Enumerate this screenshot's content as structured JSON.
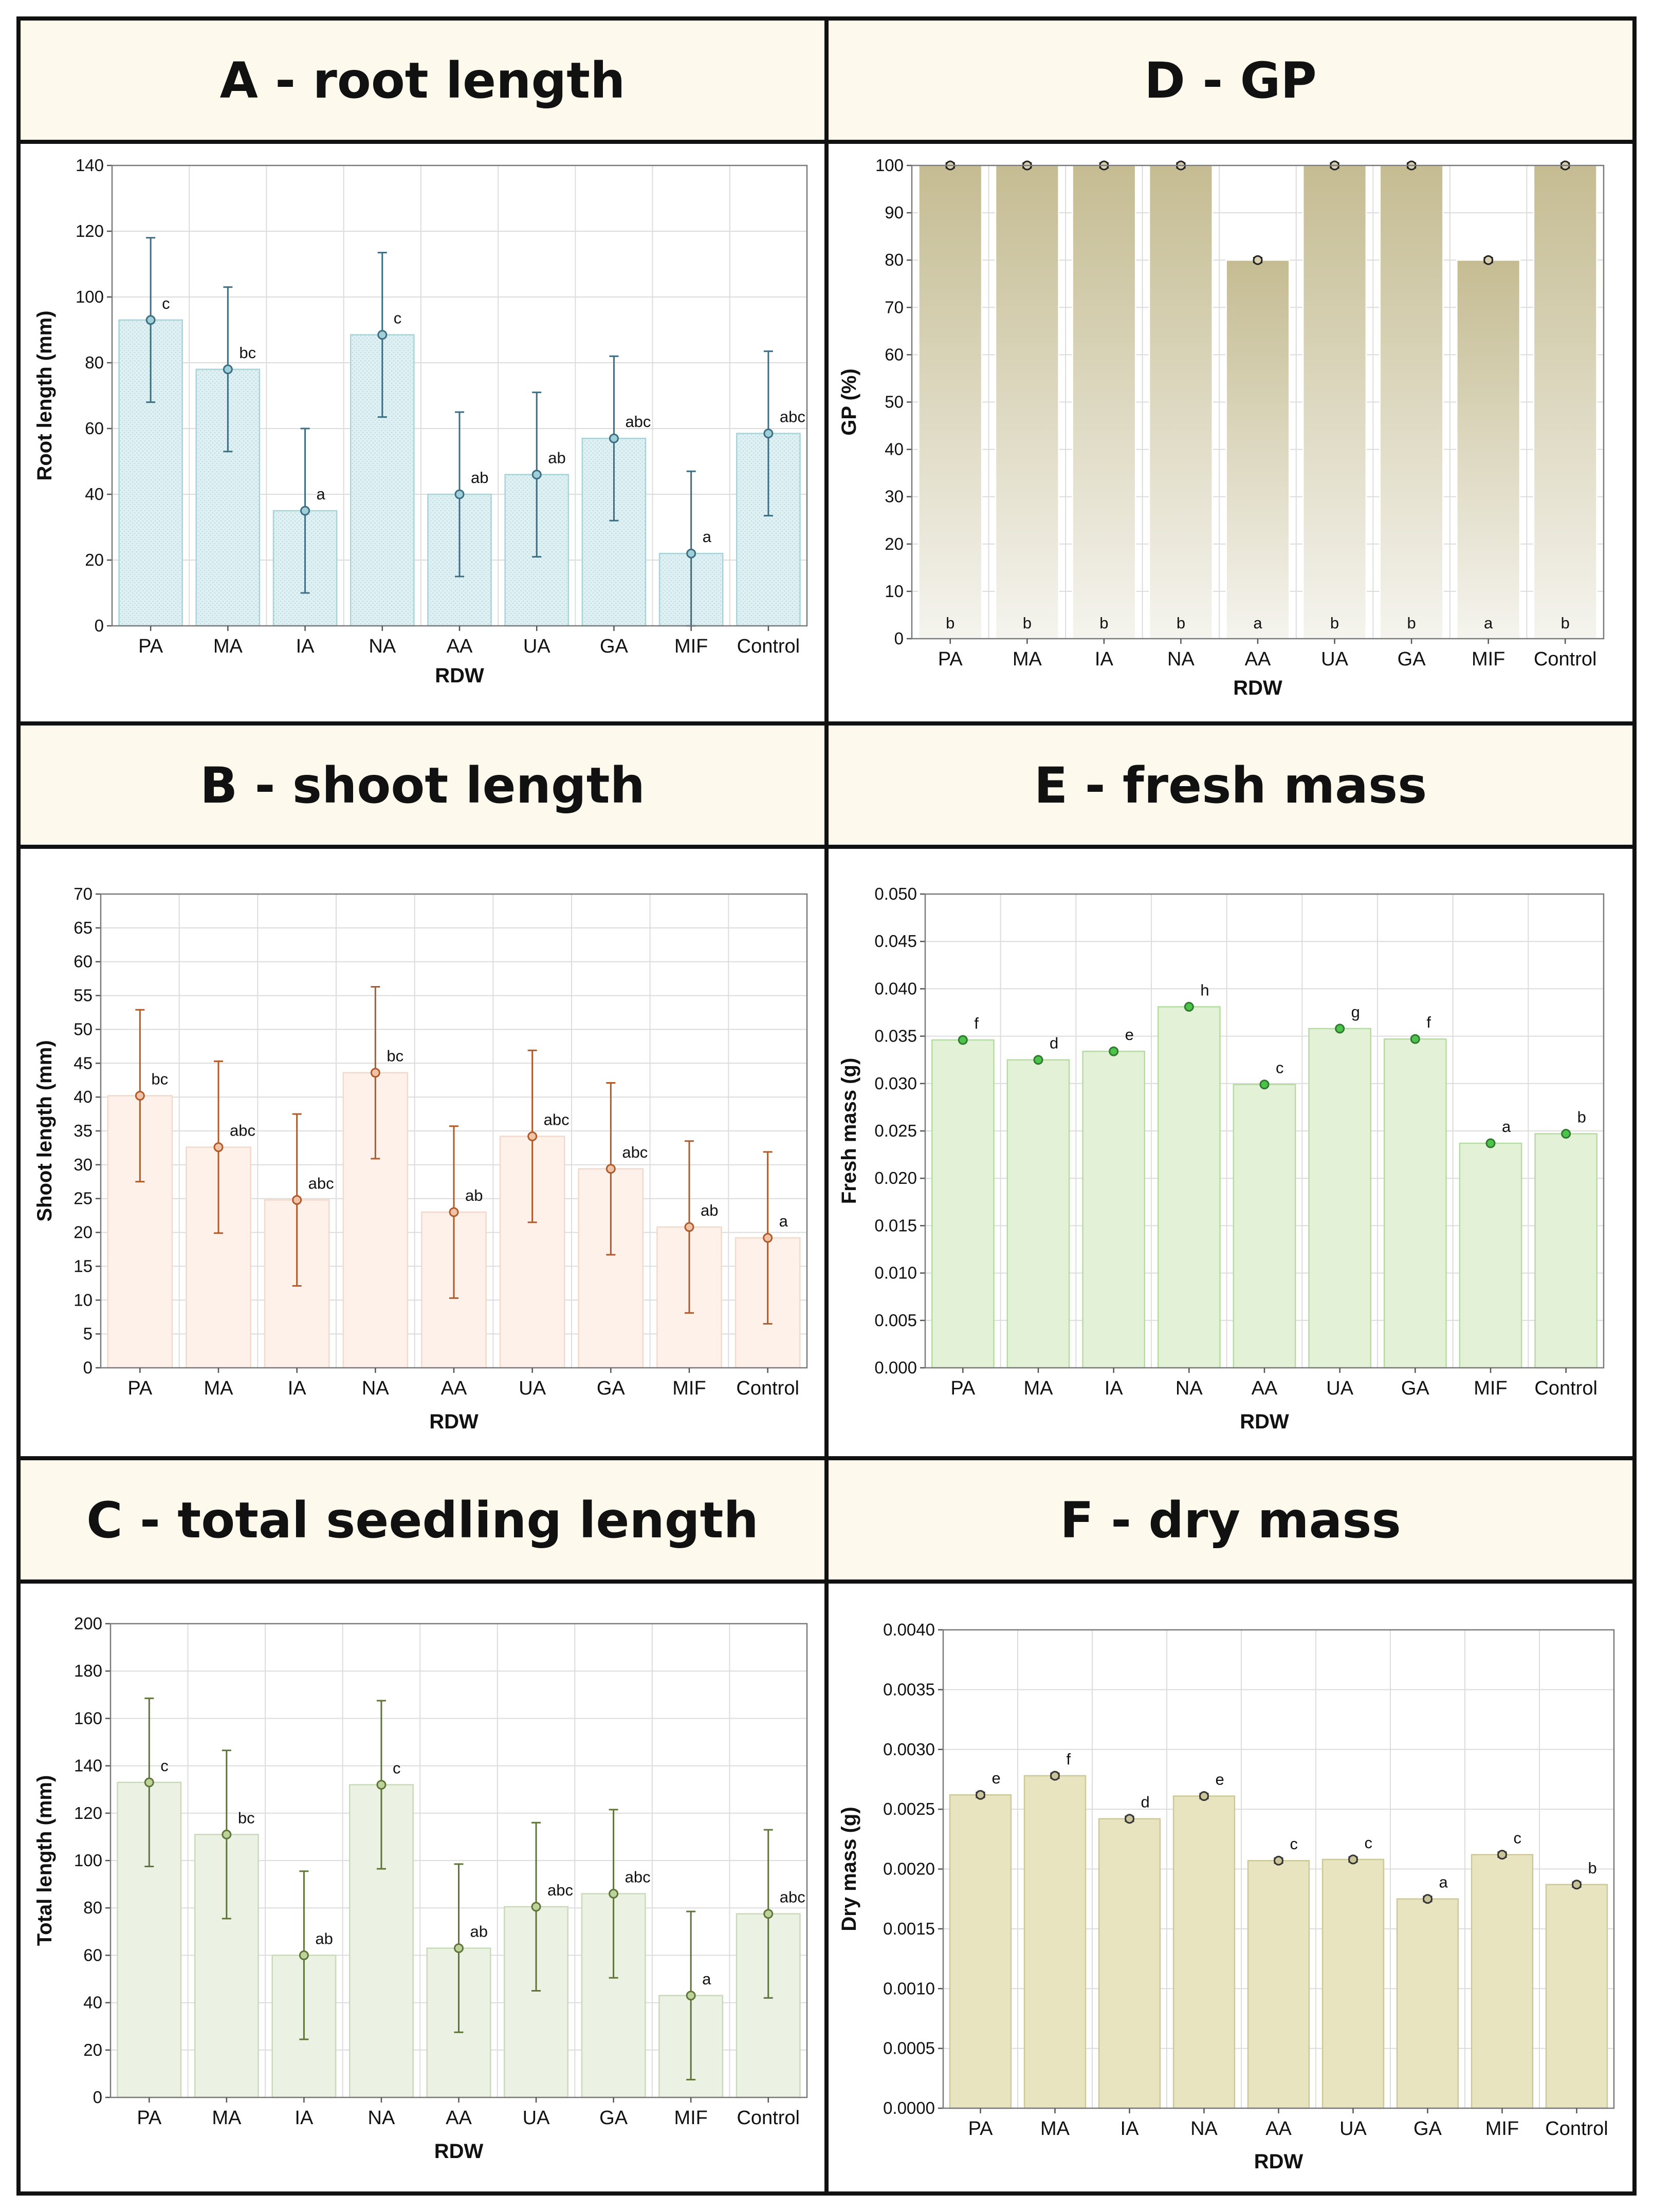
{
  "chart_data": [
    {
      "id": "A",
      "type": "bar",
      "title": "A - root length",
      "xlabel": "RDW",
      "ylabel": "Root length (mm)",
      "ylim": [
        0,
        140
      ],
      "yticks": [
        "0",
        "20",
        "40",
        "60",
        "80",
        "100",
        "120",
        "140"
      ],
      "categories": [
        "PA",
        "MA",
        "IA",
        "NA",
        "AA",
        "UA",
        "GA",
        "MIF",
        "Control"
      ],
      "values": [
        93,
        78,
        35,
        88.5,
        40,
        46,
        57,
        22,
        58.5
      ],
      "error_low": [
        68,
        53,
        10,
        63.5,
        15,
        21,
        32,
        0,
        33.5
      ],
      "error_high": [
        118,
        103,
        60,
        113.5,
        65,
        71,
        82,
        47,
        83.5
      ],
      "labels": [
        "c",
        "bc",
        "a",
        "c",
        "ab",
        "ab",
        "abc",
        "a",
        "abc"
      ],
      "label_pos": "marker",
      "colors": {
        "fill": "#dff0f2",
        "edge": "#a8d3d8",
        "line": "#3d6d82",
        "marker_fill": "#9fd0d8"
      }
    },
    {
      "id": "B",
      "type": "bar",
      "title": "B - shoot length",
      "xlabel": "RDW",
      "ylabel": "Shoot length (mm)",
      "ylim": [
        0,
        70
      ],
      "yticks": [
        "0",
        "5",
        "10",
        "15",
        "20",
        "25",
        "30",
        "35",
        "40",
        "45",
        "50",
        "55",
        "60",
        "65",
        "70"
      ],
      "categories": [
        "PA",
        "MA",
        "IA",
        "NA",
        "AA",
        "UA",
        "GA",
        "MIF",
        "Control"
      ],
      "values": [
        40.2,
        32.6,
        24.8,
        43.6,
        23,
        34.2,
        29.4,
        20.8,
        19.2
      ],
      "error_low": [
        27.5,
        19.9,
        12.1,
        30.9,
        10.3,
        21.5,
        16.7,
        8.1,
        6.5
      ],
      "error_high": [
        52.9,
        45.3,
        37.5,
        56.3,
        35.7,
        46.9,
        42.1,
        33.5,
        31.9
      ],
      "labels": [
        "bc",
        "abc",
        "abc",
        "bc",
        "ab",
        "abc",
        "abc",
        "ab",
        "a"
      ],
      "label_pos": "marker",
      "colors": {
        "fill": "#fdf1ea",
        "edge": "#f2d9cb",
        "line": "#b05a2a",
        "marker_fill": "#f0c2a6"
      }
    },
    {
      "id": "C",
      "type": "bar",
      "title": "C - total seedling length",
      "xlabel": "RDW",
      "ylabel": "Total length (mm)",
      "ylim": [
        0,
        200
      ],
      "yticks": [
        "0",
        "20",
        "40",
        "60",
        "80",
        "100",
        "120",
        "140",
        "160",
        "180",
        "200"
      ],
      "categories": [
        "PA",
        "MA",
        "IA",
        "NA",
        "AA",
        "UA",
        "GA",
        "MIF",
        "Control"
      ],
      "values": [
        133,
        111,
        60,
        132,
        63,
        80.5,
        86,
        43,
        77.5
      ],
      "error_low": [
        97.5,
        75.5,
        24.5,
        96.5,
        27.5,
        45,
        50.5,
        7.5,
        42
      ],
      "error_high": [
        168.5,
        146.5,
        95.5,
        167.5,
        98.5,
        116,
        121.5,
        78.5,
        113
      ],
      "labels": [
        "c",
        "bc",
        "ab",
        "c",
        "ab",
        "abc",
        "abc",
        "a",
        "abc"
      ],
      "label_pos": "marker",
      "colors": {
        "fill": "#ebf2e3",
        "edge": "#c9d9b9",
        "line": "#5f7538",
        "marker_fill": "#bcd29a"
      }
    },
    {
      "id": "D",
      "type": "bar",
      "title": "D - GP",
      "xlabel": "RDW",
      "ylabel": "GP (%)",
      "ylim": [
        0,
        100
      ],
      "yticks": [
        "0",
        "10",
        "20",
        "30",
        "40",
        "50",
        "60",
        "70",
        "80",
        "90",
        "100"
      ],
      "categories": [
        "PA",
        "MA",
        "IA",
        "NA",
        "AA",
        "UA",
        "GA",
        "MIF",
        "Control"
      ],
      "values": [
        100,
        100,
        100,
        100,
        80,
        100,
        100,
        80,
        100
      ],
      "error_low": [
        99.5,
        99.5,
        99.5,
        99.5,
        79.5,
        99.5,
        99.5,
        79.5,
        99.5
      ],
      "error_high": [
        100.5,
        100.5,
        100.5,
        100.5,
        80.5,
        100.5,
        100.5,
        80.5,
        100.5
      ],
      "labels": [
        "b",
        "b",
        "b",
        "b",
        "a",
        "b",
        "b",
        "a",
        "b"
      ],
      "label_pos": "bottom",
      "colors": {
        "fill": "#c5bc92",
        "fill_bottom": "#f5f4ee",
        "edge": "#ffffff",
        "line": "#222222",
        "marker_fill": "#d8d0b0"
      }
    },
    {
      "id": "E",
      "type": "bar",
      "title": "E - fresh mass",
      "xlabel": "RDW",
      "ylabel": "Fresh mass (g)",
      "ylim": [
        0,
        0.05
      ],
      "yticks": [
        "0.000",
        "0.005",
        "0.010",
        "0.015",
        "0.020",
        "0.025",
        "0.030",
        "0.035",
        "0.040",
        "0.045",
        "0.050"
      ],
      "categories": [
        "PA",
        "MA",
        "IA",
        "NA",
        "AA",
        "UA",
        "GA",
        "MIF",
        "Control"
      ],
      "values": [
        0.0346,
        0.0325,
        0.0334,
        0.0381,
        0.0299,
        0.0358,
        0.0347,
        0.0237,
        0.0247
      ],
      "error_low": [
        0.0345,
        0.0324,
        0.0333,
        0.038,
        0.0298,
        0.0357,
        0.0346,
        0.0236,
        0.0246
      ],
      "error_high": [
        0.0347,
        0.0326,
        0.0335,
        0.0382,
        0.03,
        0.0359,
        0.0348,
        0.0238,
        0.0248
      ],
      "labels": [
        "f",
        "d",
        "e",
        "h",
        "c",
        "g",
        "f",
        "a",
        "b"
      ],
      "label_pos": "marker",
      "colors": {
        "fill": "#e3f2d6",
        "edge": "#b5dca0",
        "line": "#2f7a2f",
        "marker_fill": "#4cc44c"
      }
    },
    {
      "id": "F",
      "type": "bar",
      "title": "F - dry mass",
      "xlabel": "RDW",
      "ylabel": "Dry mass (g)",
      "ylim": [
        0,
        0.004
      ],
      "yticks": [
        "0.0000",
        "0.0005",
        "0.0010",
        "0.0015",
        "0.0020",
        "0.0025",
        "0.0030",
        "0.0035",
        "0.0040"
      ],
      "categories": [
        "PA",
        "MA",
        "IA",
        "NA",
        "AA",
        "UA",
        "GA",
        "MIF",
        "Control"
      ],
      "values": [
        0.00262,
        0.00278,
        0.00242,
        0.00261,
        0.00207,
        0.00208,
        0.00175,
        0.00212,
        0.00187
      ],
      "error_low": [
        0.0026,
        0.00276,
        0.0024,
        0.00259,
        0.00205,
        0.00206,
        0.00173,
        0.0021,
        0.00185
      ],
      "error_high": [
        0.00264,
        0.0028,
        0.00244,
        0.00263,
        0.00209,
        0.0021,
        0.00177,
        0.00214,
        0.00189
      ],
      "labels": [
        "e",
        "f",
        "d",
        "e",
        "c",
        "c",
        "a",
        "c",
        "b"
      ],
      "label_pos": "marker",
      "colors": {
        "fill": "#e7e4bf",
        "edge": "#cdc89a",
        "line": "#333333",
        "marker_fill": "#c9c39a"
      }
    }
  ]
}
